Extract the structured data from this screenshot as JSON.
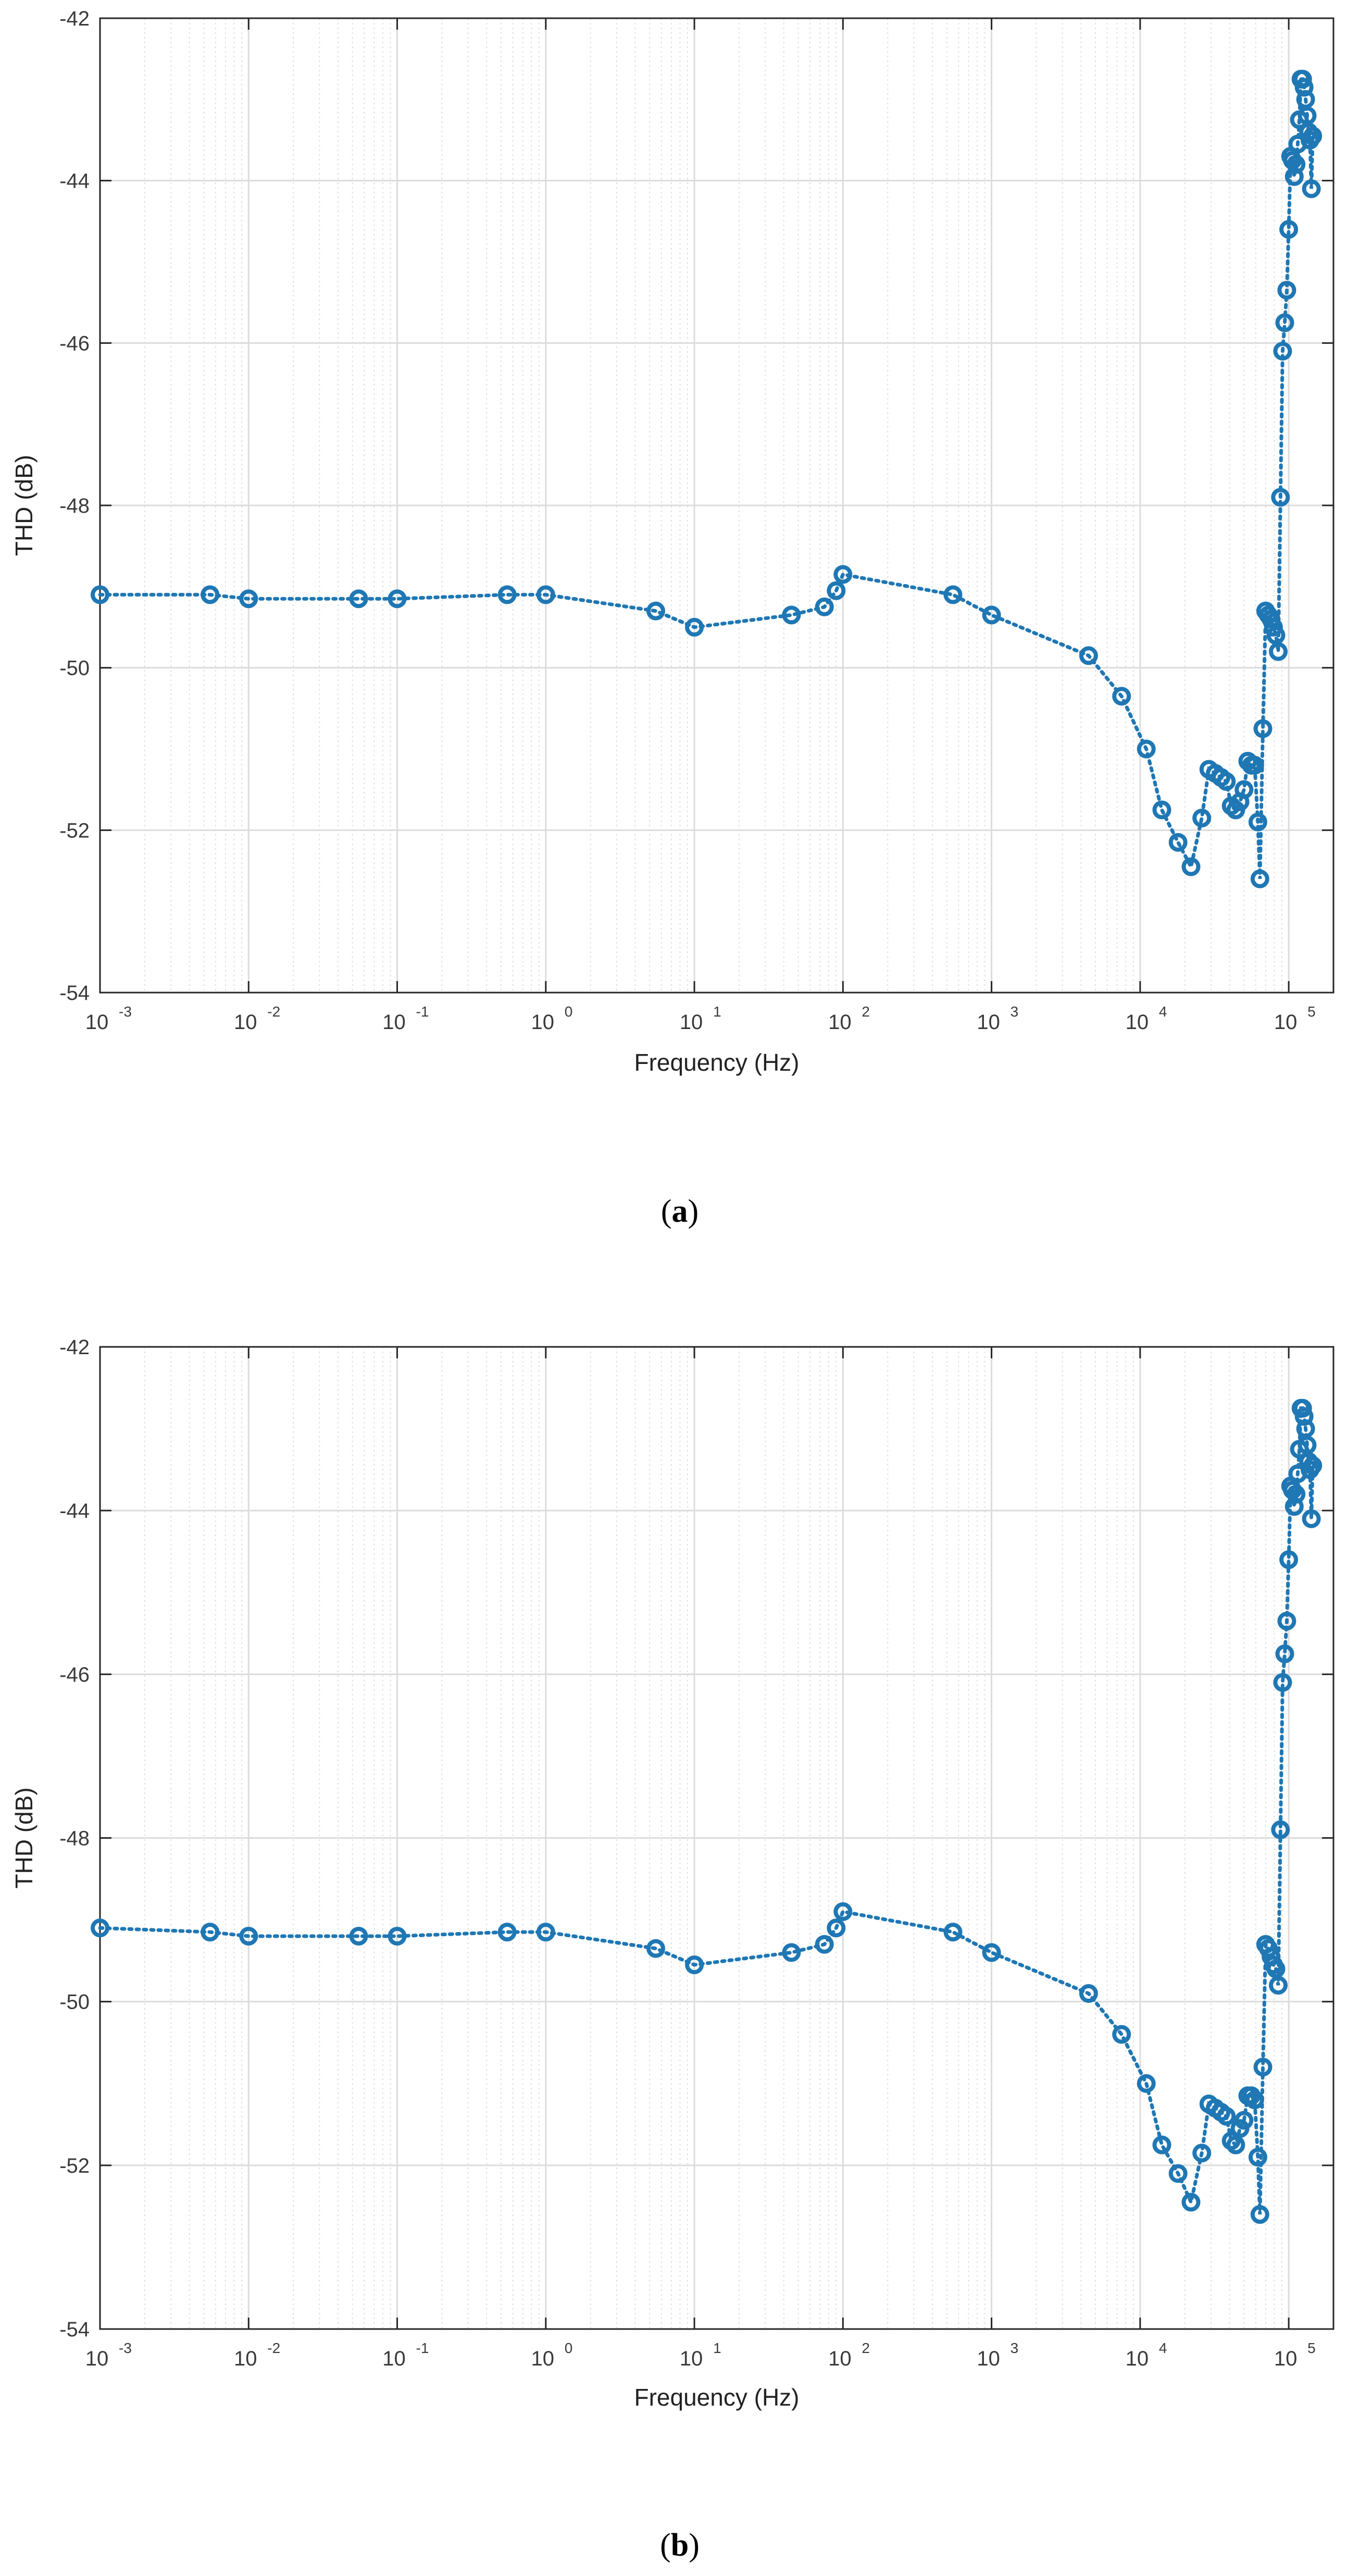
{
  "colors": {
    "series": "#1f77b4",
    "grid_major": "#dcdcdc",
    "grid_minor": "#dedede",
    "axis": "#262626",
    "background": "#ffffff"
  },
  "chart_data": [
    {
      "id": "a",
      "panel_label": "a",
      "type": "line",
      "title": "",
      "xscale": "log",
      "xlabel": "Frequency (Hz)",
      "ylabel": "THD (dB)",
      "xlim": [
        0.001,
        200000
      ],
      "ylim": [
        -54,
        -42
      ],
      "yticks": [
        -42,
        -44,
        -46,
        -48,
        -50,
        -52,
        -54
      ],
      "xticks": [
        {
          "base": "10",
          "exp": "-3"
        },
        {
          "base": "10",
          "exp": "-2"
        },
        {
          "base": "10",
          "exp": "-1"
        },
        {
          "base": "10",
          "exp": "0"
        },
        {
          "base": "10",
          "exp": "1"
        },
        {
          "base": "10",
          "exp": "2"
        },
        {
          "base": "10",
          "exp": "3"
        },
        {
          "base": "10",
          "exp": "4"
        },
        {
          "base": "10",
          "exp": "5"
        }
      ],
      "grid": true,
      "marker": "circle",
      "line_style": "dotted",
      "series": [
        {
          "name": "THD",
          "x": [
            0.001,
            0.0055,
            0.01,
            0.055,
            0.1,
            0.55,
            1,
            5.5,
            10,
            45,
            75,
            90,
            100,
            550,
            1000,
            4500,
            7500,
            11000,
            14000,
            18000,
            22000,
            26000,
            29000,
            32000,
            35000,
            38000,
            41000,
            44000,
            47000,
            50000,
            53000,
            56000,
            59000,
            62000,
            64000,
            67000,
            70000,
            73000,
            76000,
            79000,
            82000,
            85000,
            88000,
            91000,
            94000,
            97000,
            100000,
            103000,
            106000,
            109000,
            112000,
            115000,
            118000,
            121000,
            124000,
            127000,
            130000,
            133000,
            136000,
            139000,
            142000,
            145000
          ],
          "y": [
            -49.1,
            -49.1,
            -49.15,
            -49.15,
            -49.15,
            -49.1,
            -49.1,
            -49.3,
            -49.5,
            -49.35,
            -49.25,
            -49.05,
            -48.85,
            -49.1,
            -49.35,
            -49.85,
            -50.35,
            -51.0,
            -51.75,
            -52.15,
            -52.45,
            -51.85,
            -51.25,
            -51.3,
            -51.35,
            -51.4,
            -51.7,
            -51.75,
            -51.65,
            -51.5,
            -51.15,
            -51.2,
            -51.2,
            -51.9,
            -52.6,
            -50.75,
            -49.3,
            -49.35,
            -49.4,
            -49.5,
            -49.6,
            -49.8,
            -47.9,
            -46.1,
            -45.75,
            -45.35,
            -44.6,
            -43.7,
            -43.75,
            -43.95,
            -43.8,
            -43.55,
            -43.25,
            -42.75,
            -42.75,
            -42.85,
            -43.0,
            -43.2,
            -43.4,
            -43.5,
            -44.1,
            -43.45
          ]
        }
      ]
    },
    {
      "id": "b",
      "panel_label": "b",
      "type": "line",
      "title": "",
      "xscale": "log",
      "xlabel": "Frequency (Hz)",
      "ylabel": "THD (dB)",
      "xlim": [
        0.001,
        200000
      ],
      "ylim": [
        -54,
        -42
      ],
      "yticks": [
        -42,
        -44,
        -46,
        -48,
        -50,
        -52,
        -54
      ],
      "xticks": [
        {
          "base": "10",
          "exp": "-3"
        },
        {
          "base": "10",
          "exp": "-2"
        },
        {
          "base": "10",
          "exp": "-1"
        },
        {
          "base": "10",
          "exp": "0"
        },
        {
          "base": "10",
          "exp": "1"
        },
        {
          "base": "10",
          "exp": "2"
        },
        {
          "base": "10",
          "exp": "3"
        },
        {
          "base": "10",
          "exp": "4"
        },
        {
          "base": "10",
          "exp": "5"
        }
      ],
      "grid": true,
      "marker": "circle",
      "line_style": "dotted",
      "series": [
        {
          "name": "THD",
          "x": [
            0.001,
            0.0055,
            0.01,
            0.055,
            0.1,
            0.55,
            1,
            5.5,
            10,
            45,
            75,
            90,
            100,
            550,
            1000,
            4500,
            7500,
            11000,
            14000,
            18000,
            22000,
            26000,
            29000,
            32000,
            35000,
            38000,
            41000,
            44000,
            47000,
            50000,
            53000,
            56000,
            59000,
            62000,
            64000,
            67000,
            70000,
            73000,
            76000,
            79000,
            82000,
            85000,
            88000,
            91000,
            94000,
            97000,
            100000,
            103000,
            106000,
            109000,
            112000,
            115000,
            118000,
            121000,
            124000,
            127000,
            130000,
            133000,
            136000,
            139000,
            142000,
            145000
          ],
          "y": [
            -49.1,
            -49.15,
            -49.2,
            -49.2,
            -49.2,
            -49.15,
            -49.15,
            -49.35,
            -49.55,
            -49.4,
            -49.3,
            -49.1,
            -48.9,
            -49.15,
            -49.4,
            -49.9,
            -50.4,
            -51.0,
            -51.75,
            -52.1,
            -52.45,
            -51.85,
            -51.25,
            -51.3,
            -51.35,
            -51.4,
            -51.7,
            -51.75,
            -51.55,
            -51.45,
            -51.15,
            -51.15,
            -51.2,
            -51.9,
            -52.6,
            -50.8,
            -49.3,
            -49.35,
            -49.45,
            -49.55,
            -49.6,
            -49.8,
            -47.9,
            -46.1,
            -45.75,
            -45.35,
            -44.6,
            -43.7,
            -43.75,
            -43.95,
            -43.8,
            -43.55,
            -43.25,
            -42.75,
            -42.75,
            -42.85,
            -43.0,
            -43.2,
            -43.4,
            -43.5,
            -44.1,
            -43.45
          ]
        }
      ]
    }
  ]
}
